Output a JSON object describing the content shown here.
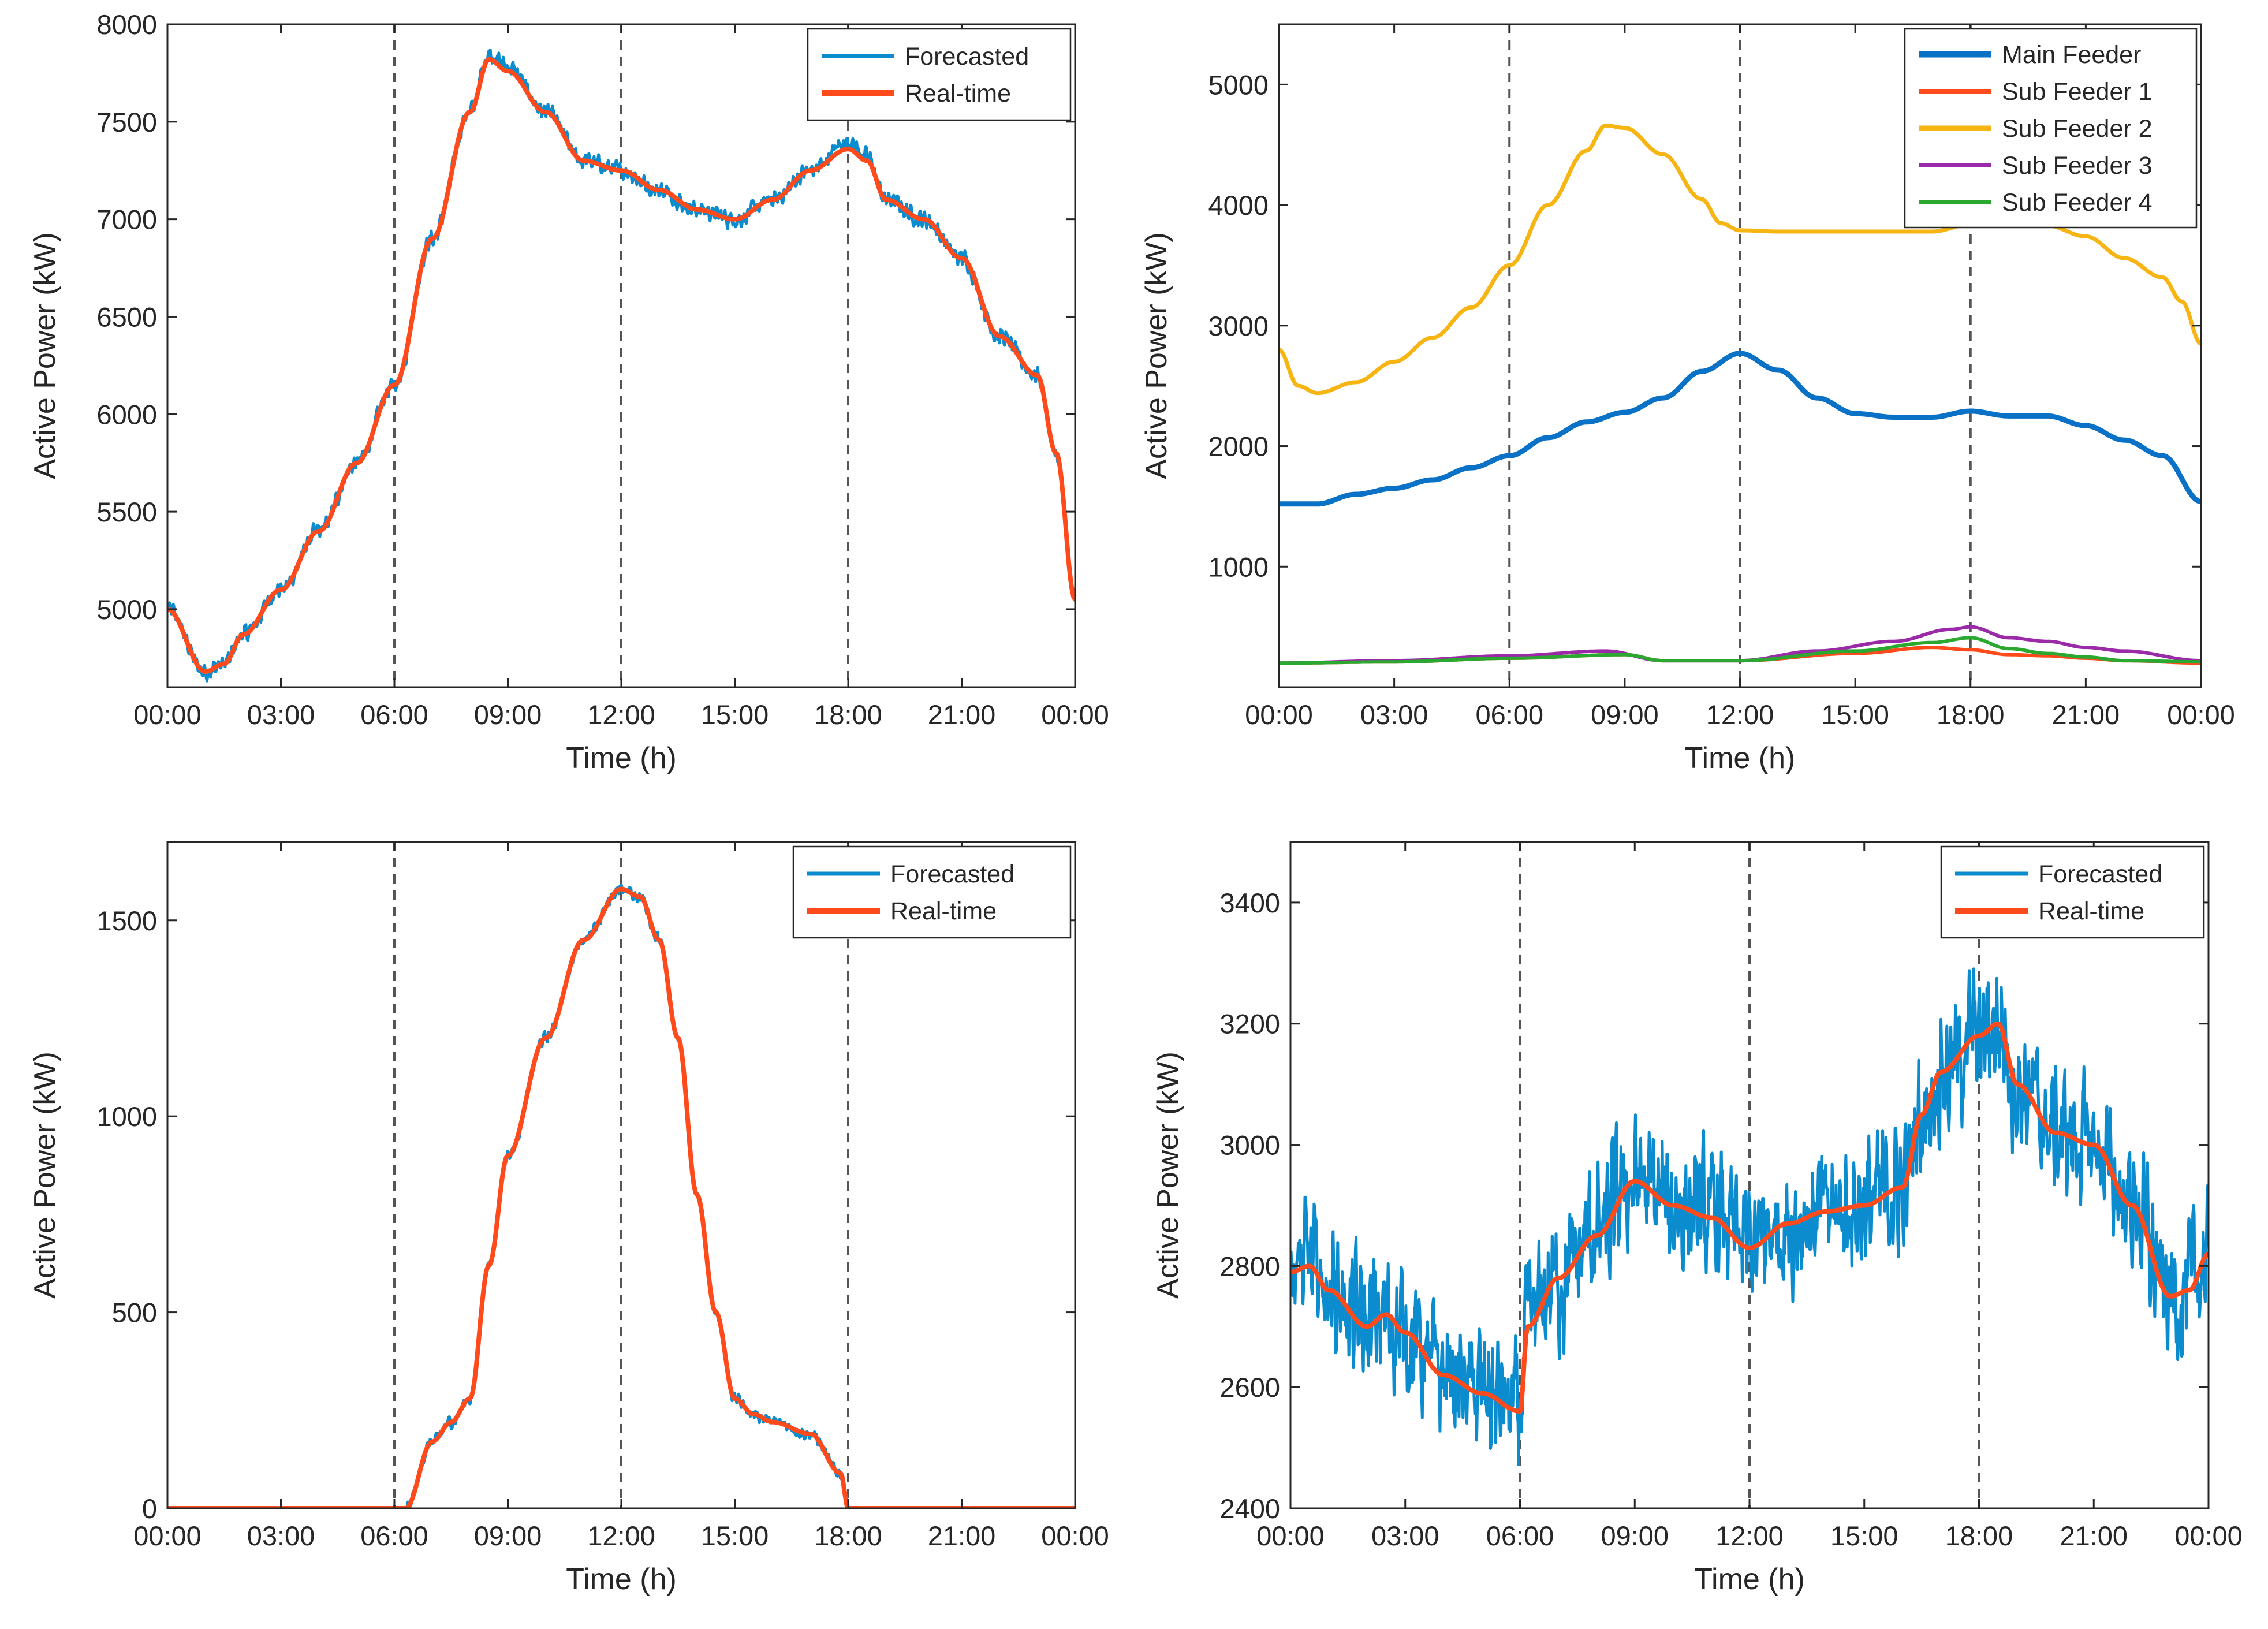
{
  "colors": {
    "forecasted": "#0a8ccf",
    "realtime": "#ff4a1c",
    "main_feeder": "#0a72c6",
    "sub_feeder_1": "#ff4a1c",
    "sub_feeder_2": "#f7b514",
    "sub_feeder_3": "#9a2aa8",
    "sub_feeder_4": "#2aa830",
    "vline": "#555555",
    "axis": "#262626"
  },
  "chart_data": [
    {
      "type": "line",
      "xlabel": "Time (h)",
      "ylabel": "Active Power (kW)",
      "xlim": [
        0,
        24
      ],
      "ylim": [
        4600,
        8000
      ],
      "x_ticks": [
        0,
        3,
        6,
        9,
        12,
        15,
        18,
        21,
        24
      ],
      "x_tick_labels": [
        "00:00",
        "03:00",
        "06:00",
        "09:00",
        "12:00",
        "15:00",
        "18:00",
        "21:00",
        "00:00"
      ],
      "y_ticks": [
        5000,
        5500,
        6000,
        6500,
        7000,
        7500,
        8000
      ],
      "y_tick_labels": [
        "5000",
        "5500",
        "6000",
        "6500",
        "7000",
        "7500",
        "8000"
      ],
      "vlines": [
        6,
        12,
        18
      ],
      "legend_position": "top-right",
      "legend": [
        "Forecasted",
        "Real-time"
      ],
      "noise": [
        60,
        0
      ],
      "series": [
        {
          "name": "Forecasted",
          "color_key": "forecasted",
          "x": [
            0,
            1,
            1.5,
            2,
            3,
            4,
            5,
            6,
            7,
            8,
            8.5,
            9,
            10,
            11,
            12,
            13,
            14,
            15,
            16,
            17,
            18,
            18.5,
            19,
            20,
            21,
            22,
            23,
            23.5,
            24
          ],
          "values": [
            5000,
            4680,
            4720,
            4870,
            5100,
            5400,
            5750,
            6150,
            6900,
            7550,
            7850,
            7780,
            7550,
            7300,
            7250,
            7150,
            7050,
            7000,
            7100,
            7250,
            7400,
            7320,
            7100,
            7000,
            6800,
            6400,
            6200,
            5800,
            5050
          ]
        },
        {
          "name": "Real-time",
          "color_key": "realtime",
          "x": [
            0,
            1,
            1.5,
            2,
            3,
            4,
            5,
            6,
            7,
            8,
            8.5,
            9,
            10,
            11,
            12,
            13,
            14,
            15,
            16,
            17,
            18,
            18.5,
            19,
            20,
            21,
            22,
            23,
            23.5,
            24
          ],
          "values": [
            5000,
            4680,
            4720,
            4870,
            5100,
            5400,
            5750,
            6150,
            6900,
            7550,
            7820,
            7760,
            7550,
            7300,
            7250,
            7150,
            7050,
            7000,
            7100,
            7250,
            7360,
            7300,
            7100,
            7000,
            6800,
            6400,
            6200,
            5800,
            5050
          ]
        }
      ]
    },
    {
      "type": "line",
      "xlabel": "Time (h)",
      "ylabel": "Active Power (kW)",
      "xlim": [
        0,
        24
      ],
      "ylim": [
        0,
        5500
      ],
      "x_ticks": [
        0,
        3,
        6,
        9,
        12,
        15,
        18,
        21,
        24
      ],
      "x_tick_labels": [
        "00:00",
        "03:00",
        "06:00",
        "09:00",
        "12:00",
        "15:00",
        "18:00",
        "21:00",
        "00:00"
      ],
      "y_ticks": [
        1000,
        2000,
        3000,
        4000,
        5000
      ],
      "y_tick_labels": [
        "1000",
        "2000",
        "3000",
        "4000",
        "5000"
      ],
      "vlines": [
        6,
        12,
        18
      ],
      "legend_position": "top-right",
      "legend": [
        "Main Feeder",
        "Sub Feeder 1",
        "Sub Feeder 2",
        "Sub Feeder 3",
        "Sub Feeder 4"
      ],
      "noise": [
        0,
        0,
        0,
        0,
        0
      ],
      "series": [
        {
          "name": "Main Feeder",
          "color_key": "main_feeder",
          "x": [
            0,
            1,
            2,
            3,
            4,
            5,
            6,
            7,
            8,
            9,
            10,
            11,
            12,
            13,
            14,
            15,
            16,
            17,
            18,
            19,
            20,
            21,
            22,
            23,
            24
          ],
          "values": [
            1520,
            1520,
            1600,
            1650,
            1720,
            1820,
            1920,
            2070,
            2200,
            2280,
            2400,
            2620,
            2770,
            2630,
            2400,
            2270,
            2240,
            2240,
            2290,
            2250,
            2250,
            2170,
            2050,
            1920,
            1540
          ]
        },
        {
          "name": "Sub Feeder 1",
          "color_key": "sub_feeder_1",
          "x": [
            0,
            3,
            6,
            9,
            10,
            12,
            15,
            17,
            18,
            19,
            20,
            21,
            22,
            24
          ],
          "values": [
            200,
            210,
            240,
            270,
            220,
            220,
            280,
            330,
            310,
            270,
            260,
            240,
            220,
            200
          ]
        },
        {
          "name": "Sub Feeder 2",
          "color_key": "sub_feeder_2",
          "x": [
            0,
            0.5,
            1,
            2,
            3,
            4,
            5,
            6,
            7,
            8,
            8.5,
            9,
            10,
            11,
            11.5,
            12,
            13,
            14,
            15,
            16,
            17,
            18,
            19,
            20,
            21,
            22,
            23,
            23.5,
            24
          ],
          "values": [
            2800,
            2500,
            2440,
            2530,
            2700,
            2900,
            3150,
            3500,
            4000,
            4450,
            4660,
            4640,
            4420,
            4050,
            3850,
            3790,
            3780,
            3780,
            3780,
            3780,
            3780,
            3840,
            3850,
            3830,
            3740,
            3560,
            3400,
            3200,
            2850
          ]
        },
        {
          "name": "Sub Feeder 3",
          "color_key": "sub_feeder_3",
          "x": [
            0,
            3,
            6,
            8.5,
            10,
            12,
            14,
            16,
            17.5,
            18,
            19,
            20,
            21,
            22,
            24
          ],
          "values": [
            200,
            220,
            260,
            300,
            220,
            220,
            300,
            380,
            480,
            500,
            410,
            380,
            330,
            300,
            220
          ]
        },
        {
          "name": "Sub Feeder 4",
          "color_key": "sub_feeder_4",
          "x": [
            0,
            3,
            6,
            9,
            10,
            12,
            15,
            17,
            18,
            19,
            20,
            21,
            22,
            24
          ],
          "values": [
            200,
            210,
            240,
            270,
            220,
            220,
            300,
            370,
            410,
            320,
            280,
            250,
            220,
            210
          ]
        }
      ]
    },
    {
      "type": "line",
      "xlabel": "Time (h)",
      "ylabel": "Active Power (kW)",
      "xlim": [
        0,
        24
      ],
      "ylim": [
        0,
        1700
      ],
      "x_ticks": [
        0,
        3,
        6,
        9,
        12,
        15,
        18,
        21,
        24
      ],
      "x_tick_labels": [
        "00:00",
        "03:00",
        "06:00",
        "09:00",
        "12:00",
        "15:00",
        "18:00",
        "21:00",
        "00:00"
      ],
      "y_ticks": [
        0,
        500,
        1000,
        1500
      ],
      "y_tick_labels": [
        "0",
        "500",
        "1000",
        "1500"
      ],
      "vlines": [
        6,
        12,
        18
      ],
      "legend_position": "top-right",
      "legend": [
        "Forecasted",
        "Real-time"
      ],
      "noise": [
        20,
        0
      ],
      "series": [
        {
          "name": "Forecasted",
          "color_key": "forecasted",
          "x": [
            0,
            6,
            6.3,
            7,
            7.5,
            8,
            8.5,
            9,
            10,
            11,
            12,
            12.5,
            13,
            13.5,
            14,
            14.5,
            15,
            15.5,
            16,
            17,
            17.8,
            18,
            24
          ],
          "values": [
            0,
            0,
            0,
            170,
            220,
            280,
            620,
            900,
            1200,
            1450,
            1580,
            1560,
            1450,
            1200,
            800,
            500,
            280,
            240,
            220,
            190,
            90,
            0,
            0
          ]
        },
        {
          "name": "Real-time",
          "color_key": "realtime",
          "x": [
            0,
            6,
            6.3,
            7,
            7.5,
            8,
            8.5,
            9,
            10,
            11,
            12,
            12.5,
            13,
            13.5,
            14,
            14.5,
            15,
            15.5,
            16,
            17,
            17.8,
            18,
            24
          ],
          "values": [
            0,
            0,
            0,
            170,
            220,
            280,
            620,
            900,
            1200,
            1450,
            1580,
            1560,
            1450,
            1200,
            800,
            500,
            280,
            240,
            220,
            190,
            90,
            0,
            0
          ]
        }
      ]
    },
    {
      "type": "line",
      "xlabel": "Time (h)",
      "ylabel": "Active Power (kW)",
      "xlim": [
        0,
        24
      ],
      "ylim": [
        2400,
        3500
      ],
      "x_ticks": [
        0,
        3,
        6,
        9,
        12,
        15,
        18,
        21,
        24
      ],
      "x_tick_labels": [
        "00:00",
        "03:00",
        "06:00",
        "09:00",
        "12:00",
        "15:00",
        "18:00",
        "21:00",
        "00:00"
      ],
      "y_ticks": [
        2400,
        2600,
        2800,
        3000,
        3200,
        3400
      ],
      "y_tick_labels": [
        "2400",
        "2600",
        "2800",
        "3000",
        "3200",
        "3400"
      ],
      "vlines": [
        6,
        12,
        18
      ],
      "legend_position": "top-right",
      "legend": [
        "Forecasted",
        "Real-time"
      ],
      "noise": [
        150,
        0
      ],
      "series": [
        {
          "name": "Forecasted",
          "color_key": "forecasted",
          "x": [
            0,
            0.5,
            1,
            2,
            2.5,
            3,
            4,
            5,
            6,
            6.2,
            7,
            8,
            9,
            10,
            11,
            12,
            13,
            14,
            15,
            16,
            16.5,
            17,
            18,
            18.5,
            19,
            20,
            21,
            22,
            23,
            23.5,
            24
          ],
          "values": [
            2790,
            2800,
            2760,
            2700,
            2720,
            2690,
            2620,
            2590,
            2560,
            2700,
            2780,
            2850,
            2940,
            2900,
            2880,
            2830,
            2870,
            2890,
            2900,
            2930,
            3050,
            3120,
            3180,
            3200,
            3100,
            3020,
            3000,
            2900,
            2750,
            2760,
            2820
          ]
        },
        {
          "name": "Real-time",
          "color_key": "realtime",
          "x": [
            0,
            0.5,
            1,
            2,
            2.5,
            3,
            4,
            5,
            6,
            6.2,
            7,
            8,
            9,
            10,
            11,
            12,
            13,
            14,
            15,
            16,
            16.5,
            17,
            18,
            18.5,
            19,
            20,
            21,
            22,
            23,
            23.5,
            24
          ],
          "values": [
            2790,
            2800,
            2760,
            2700,
            2720,
            2690,
            2620,
            2590,
            2560,
            2700,
            2780,
            2850,
            2940,
            2900,
            2880,
            2830,
            2870,
            2890,
            2900,
            2930,
            3050,
            3120,
            3180,
            3200,
            3100,
            3020,
            3000,
            2900,
            2750,
            2760,
            2820
          ]
        }
      ]
    }
  ]
}
